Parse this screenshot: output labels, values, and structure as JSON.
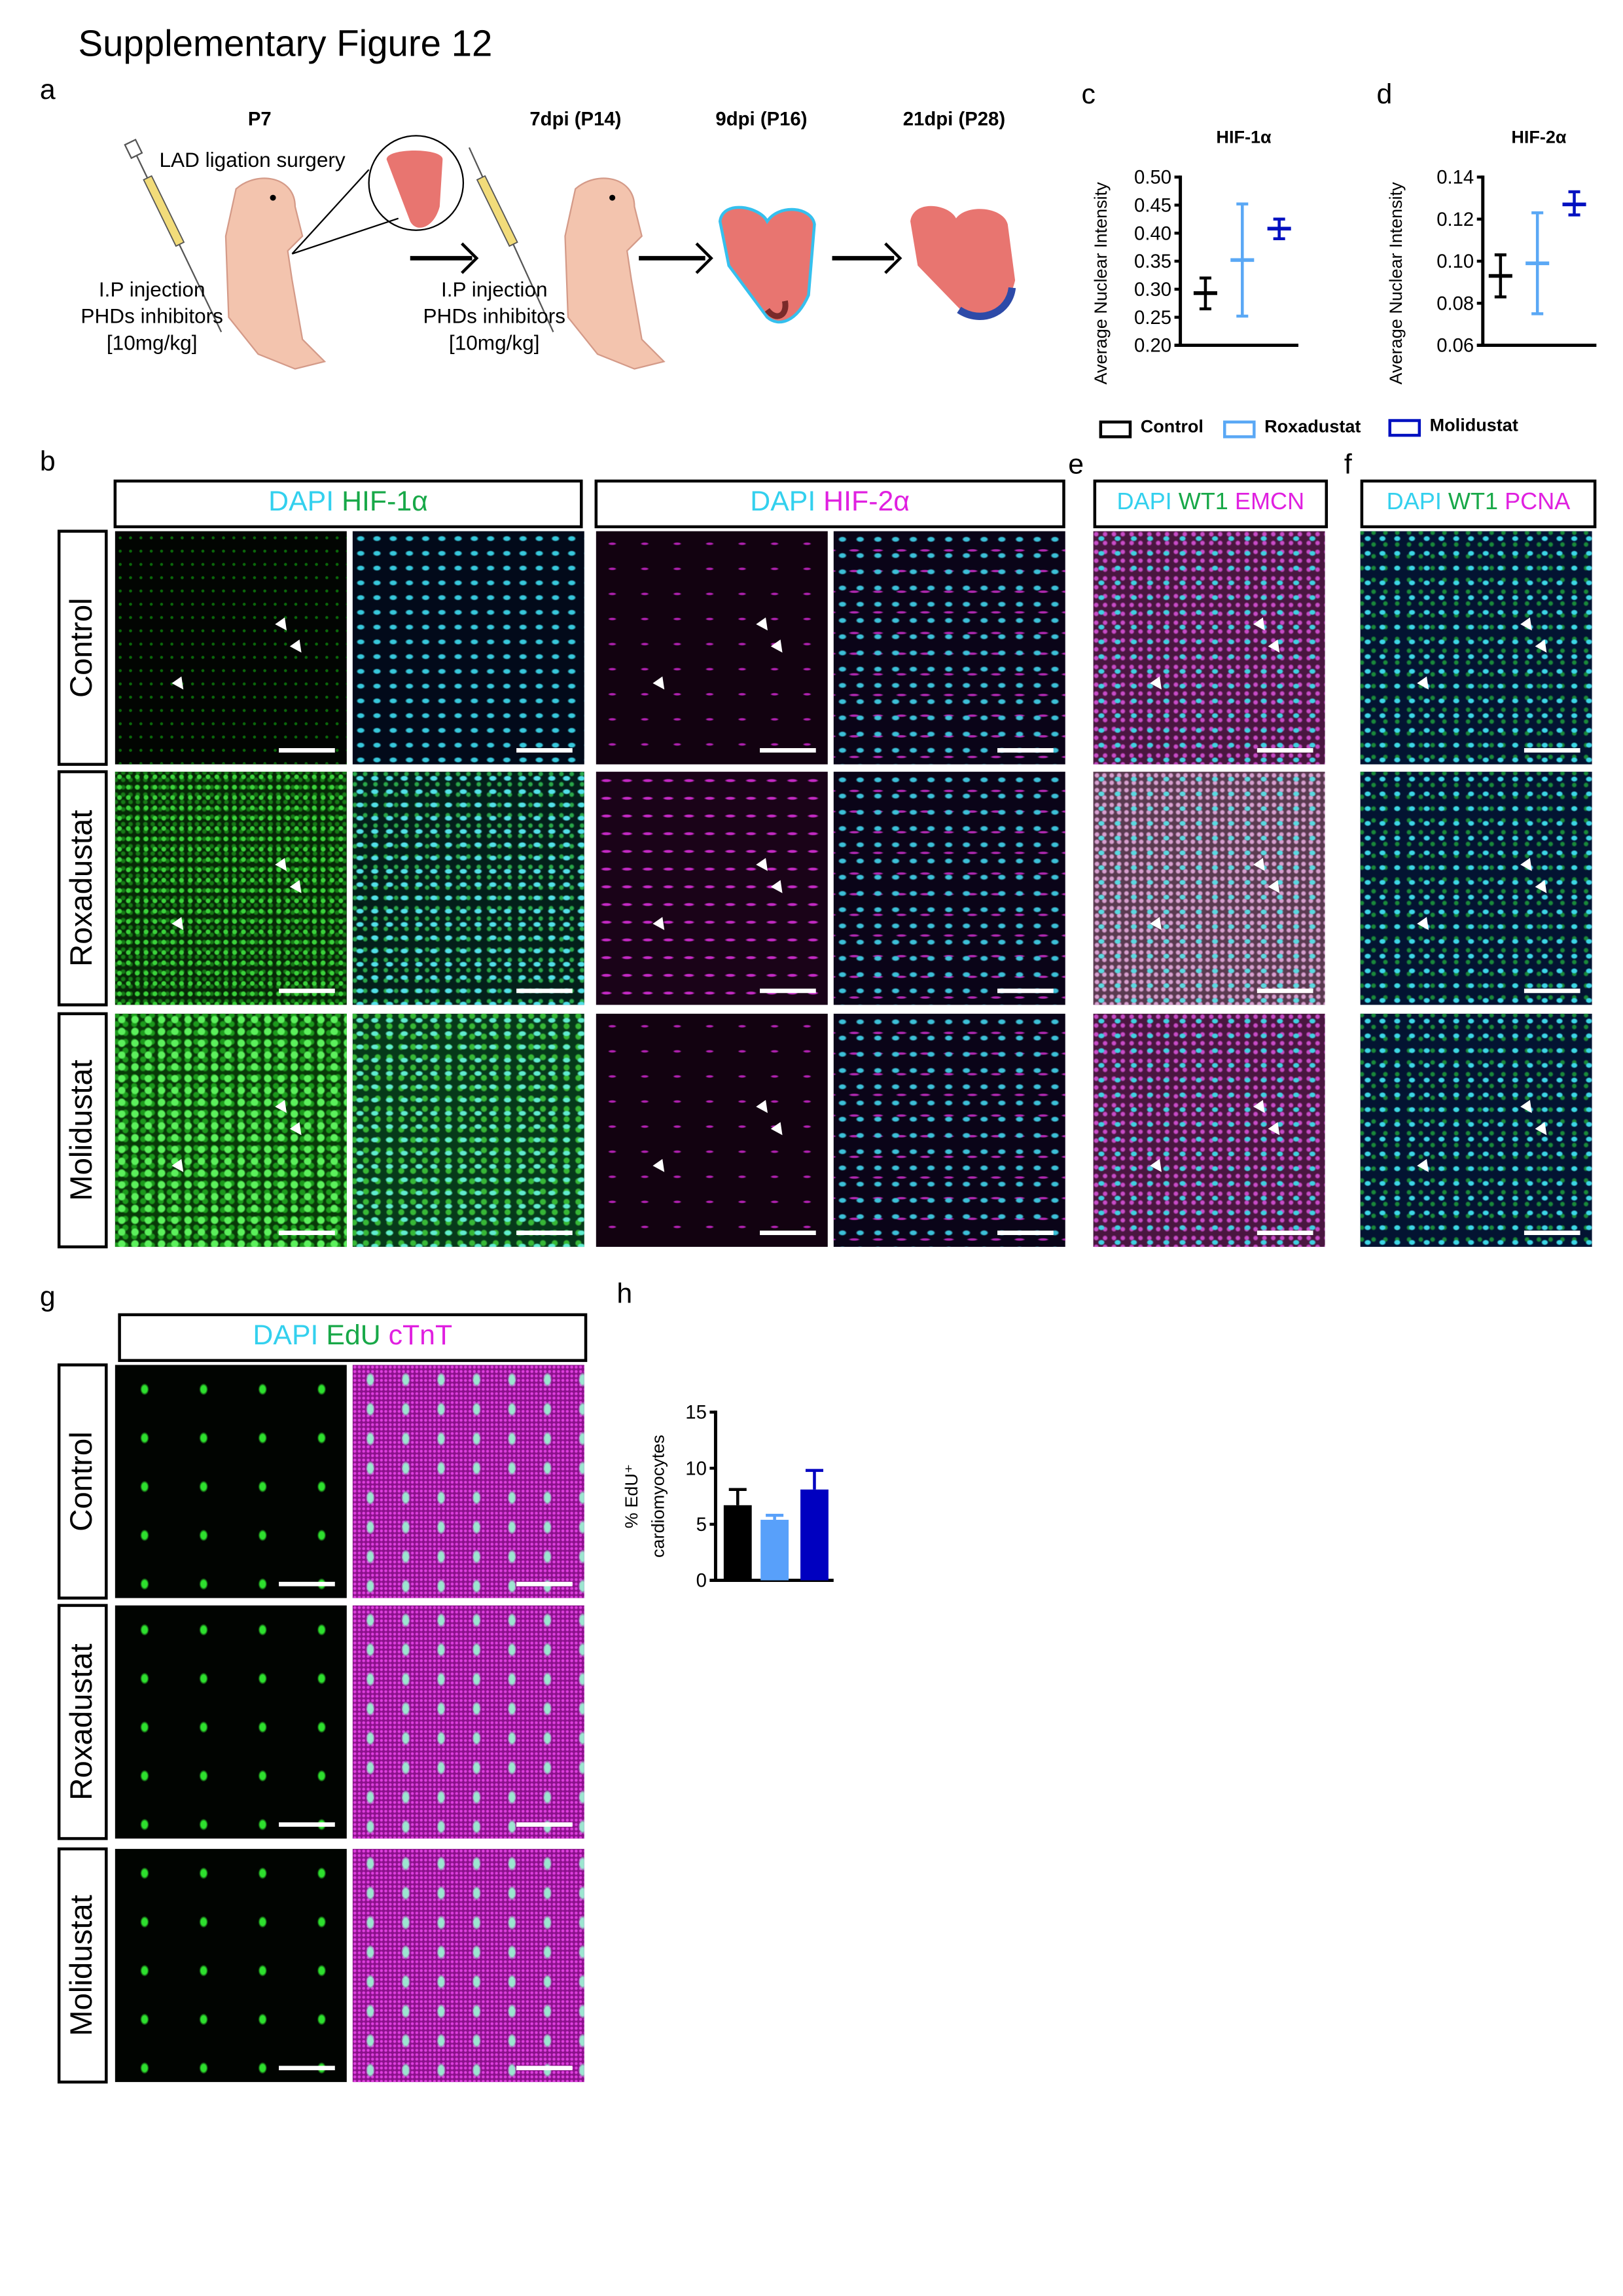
{
  "title": "Supplementary Figure 12",
  "panel_letters": {
    "a": "a",
    "b": "b",
    "c": "c",
    "d": "d",
    "e": "e",
    "f": "f",
    "g": "g",
    "h": "h"
  },
  "schematic": {
    "timepoints": [
      "P7",
      "7dpi (P14)",
      "9dpi (P16)",
      "21dpi (P28)"
    ],
    "surgery_label": "LAD ligation surgery",
    "injection_1": [
      "I.P injection",
      "PHDs inhibitors",
      "[10mg/kg]"
    ],
    "injection_2": [
      "I.P injection",
      "PHDs inhibitors",
      "[10mg/kg]"
    ],
    "colors": {
      "skin": "#f3c4ae",
      "heart": "#e87570",
      "infarct_border": "#35c0ee",
      "scar": "#2d4aa8"
    }
  },
  "legend": [
    {
      "label": "Control",
      "color": "#000000"
    },
    {
      "label": "Roxadustat",
      "color": "#5aa8f5"
    },
    {
      "label": "Molidustat",
      "color": "#0010c0"
    }
  ],
  "microscopy": {
    "row_labels": [
      "Control",
      "Roxadustat",
      "Molidustat"
    ],
    "header_b1": [
      {
        "text": "DAPI",
        "color": "#33d0ee"
      },
      {
        "text": "HIF-1α",
        "color": "#18a848"
      }
    ],
    "header_b2": [
      {
        "text": "DAPI",
        "color": "#33d0ee"
      },
      {
        "text": "HIF-2α",
        "color": "#e020e0"
      }
    ],
    "header_e": [
      {
        "text": "DAPI",
        "color": "#33d0ee"
      },
      {
        "text": "WT1",
        "color": "#18a848"
      },
      {
        "text": "EMCN",
        "color": "#e020e0"
      }
    ],
    "header_f": [
      {
        "text": "DAPI",
        "color": "#33d0ee"
      },
      {
        "text": "WT1",
        "color": "#18a848"
      },
      {
        "text": "PCNA",
        "color": "#e020e0"
      }
    ],
    "header_g": [
      {
        "text": "DAPI",
        "color": "#33d0ee"
      },
      {
        "text": "EdU",
        "color": "#18a848"
      },
      {
        "text": "cTnT",
        "color": "#e020e0"
      }
    ]
  },
  "chart_data": [
    {
      "panel": "c",
      "type": "scatter",
      "title": "HIF-1α",
      "ylabel": "Average Nuclear Intensity",
      "xlabel": "",
      "ylim": [
        0.2,
        0.5
      ],
      "yticks": [
        "0.20",
        "0.25",
        "0.30",
        "0.35",
        "0.40",
        "0.45",
        "0.50"
      ],
      "categories": [
        "Control",
        "Roxadustat",
        "Molidustat"
      ],
      "mean": [
        0.293,
        0.352,
        0.408
      ],
      "err_low": [
        0.265,
        0.252,
        0.39
      ],
      "err_high": [
        0.32,
        0.452,
        0.425
      ],
      "colors": [
        "#000000",
        "#5aa8f5",
        "#0010c0"
      ],
      "grid": false
    },
    {
      "panel": "d",
      "type": "scatter",
      "title": "HIF-2α",
      "ylabel": "Average Nuclear Intensity",
      "xlabel": "",
      "ylim": [
        0.06,
        0.14
      ],
      "yticks": [
        "0.06",
        "0.08",
        "0.10",
        "0.12",
        "0.14"
      ],
      "categories": [
        "Control",
        "Roxadustat",
        "Molidustat"
      ],
      "mean": [
        0.093,
        0.099,
        0.127
      ],
      "err_low": [
        0.083,
        0.075,
        0.122
      ],
      "err_high": [
        0.103,
        0.123,
        0.133
      ],
      "colors": [
        "#000000",
        "#5aa8f5",
        "#0010c0"
      ],
      "grid": false
    },
    {
      "panel": "h",
      "type": "bar",
      "title": "",
      "ylabel": "% EdU⁺ cardiomyocytes",
      "ylabel_lines": [
        "% EdU⁺",
        "cardiomyocytes"
      ],
      "xlabel": "",
      "ylim": [
        0,
        15
      ],
      "yticks": [
        "0",
        "5",
        "10",
        "15"
      ],
      "categories": [
        "Control",
        "Roxadustat",
        "Molidustat"
      ],
      "values": [
        6.7,
        5.4,
        8.1
      ],
      "err_high": [
        8.1,
        5.8,
        9.8
      ],
      "colors": [
        "#000000",
        "#58a0fa",
        "#0000c0"
      ],
      "grid": false
    }
  ]
}
